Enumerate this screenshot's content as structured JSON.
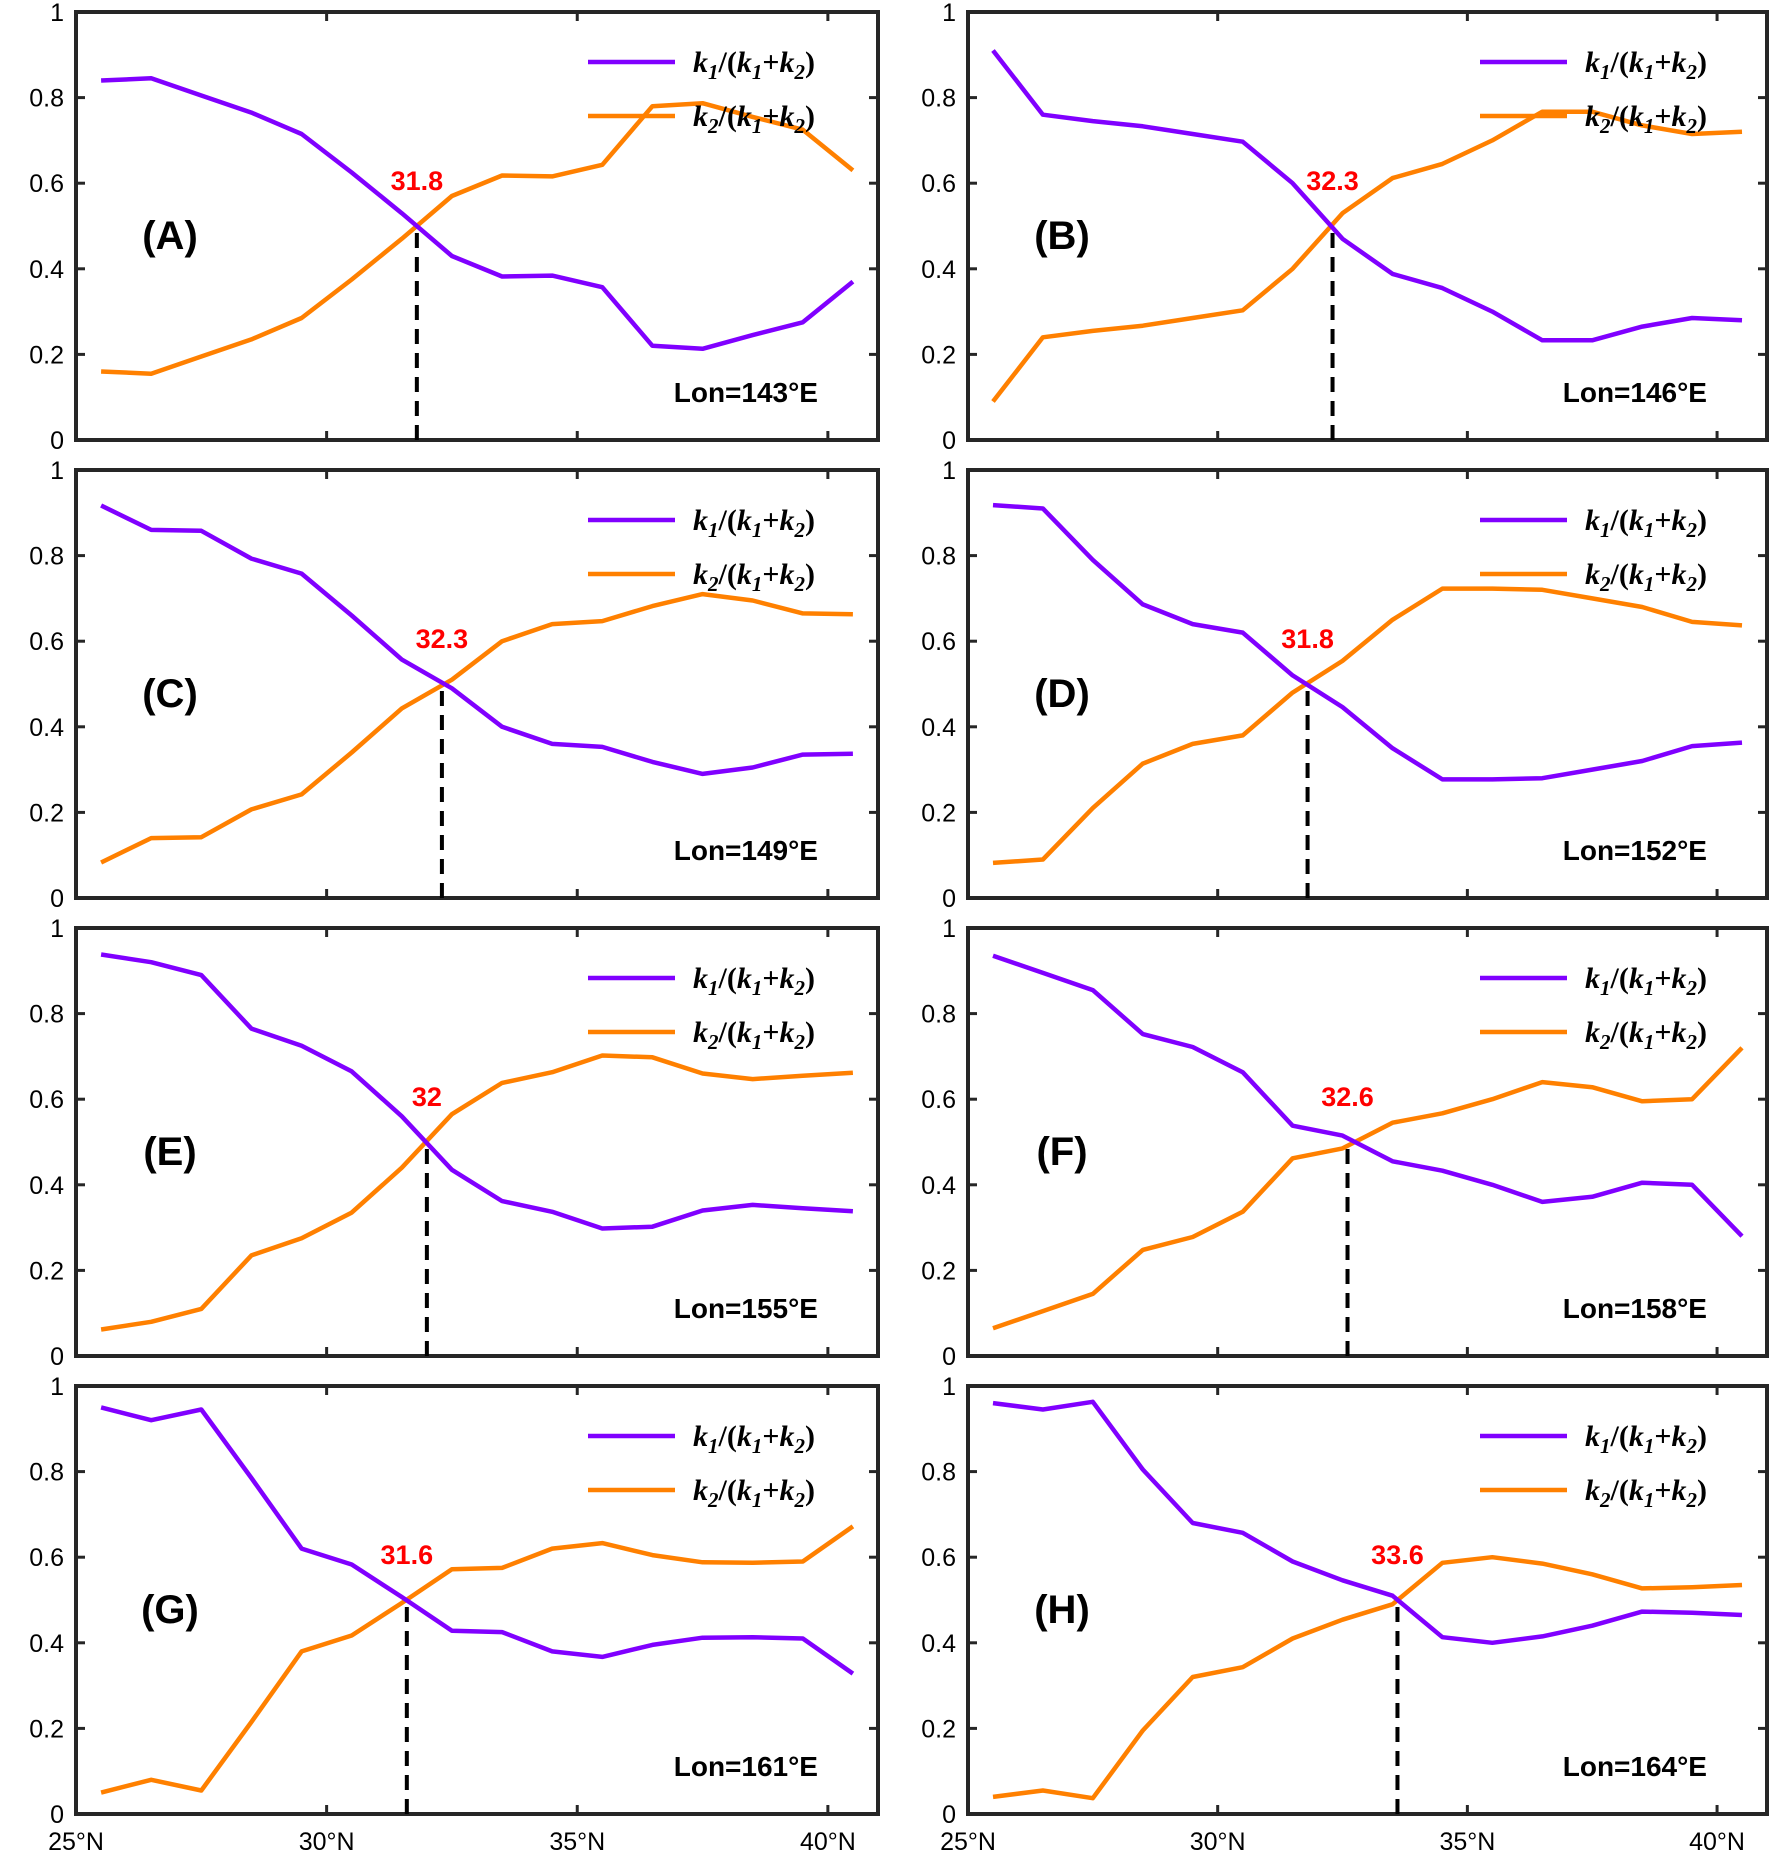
{
  "chart_data": {
    "type": "line",
    "x": [
      25.5,
      26.5,
      27.5,
      28.5,
      29.5,
      30.5,
      31.5,
      32.5,
      33.5,
      34.5,
      35.5,
      36.5,
      37.5,
      38.5,
      39.5,
      40.5
    ],
    "xlim": [
      25,
      41
    ],
    "ylim": [
      0,
      1
    ],
    "xticks": [
      25,
      30,
      35,
      40
    ],
    "xtick_labels": [
      "25°N",
      "30°N",
      "35°N",
      "40°N"
    ],
    "yticks": [
      0,
      0.2,
      0.4,
      0.6,
      0.8,
      1
    ],
    "ytick_labels": [
      "0",
      "0.2",
      "0.4",
      "0.6",
      "0.8",
      "1"
    ],
    "legend": {
      "placement": "top-right",
      "series1": {
        "name": "k1/(k1+k2)",
        "num_var": "k",
        "num_sub": "1",
        "den_open": "/(",
        "den_var1": "k",
        "den_sub1": "1",
        "plus": "+",
        "den_var2": "k",
        "den_sub2": "2",
        "close": ")"
      },
      "series2": {
        "name": "k2/(k1+k2)",
        "num_var": "k",
        "num_sub": "2",
        "den_open": "/(",
        "den_var1": "k",
        "den_sub1": "1",
        "plus": "+",
        "den_var2": "k",
        "den_sub2": "2",
        "close": ")"
      }
    },
    "colors": {
      "k1": "#8000ff",
      "k2": "#ff8000",
      "crossing_label": "#ff0000",
      "crossing_line": "#000000"
    },
    "panels": [
      {
        "label": "(A)",
        "lon_label": "Lon=143°E",
        "crossing": 31.8,
        "crossing_label": "31.8",
        "k1": [
          0.84,
          0.845,
          0.805,
          0.765,
          0.715,
          0.625,
          0.53,
          0.43,
          0.382,
          0.384,
          0.357,
          0.22,
          0.213,
          0.245,
          0.275,
          0.37
        ],
        "k2": [
          0.16,
          0.155,
          0.195,
          0.235,
          0.285,
          0.375,
          0.47,
          0.57,
          0.618,
          0.616,
          0.643,
          0.78,
          0.787,
          0.755,
          0.725,
          0.63
        ]
      },
      {
        "label": "(B)",
        "lon_label": "Lon=146°E",
        "crossing": 32.3,
        "crossing_label": "32.3",
        "k1": [
          0.91,
          0.76,
          0.745,
          0.733,
          0.715,
          0.697,
          0.6,
          0.47,
          0.388,
          0.355,
          0.3,
          0.233,
          0.233,
          0.265,
          0.285,
          0.28
        ],
        "k2": [
          0.09,
          0.24,
          0.255,
          0.267,
          0.285,
          0.303,
          0.4,
          0.53,
          0.612,
          0.645,
          0.7,
          0.767,
          0.767,
          0.735,
          0.715,
          0.72
        ]
      },
      {
        "label": "(C)",
        "lon_label": "Lon=149°E",
        "crossing": 32.3,
        "crossing_label": "32.3",
        "k1": [
          0.917,
          0.86,
          0.858,
          0.793,
          0.758,
          0.66,
          0.557,
          0.49,
          0.4,
          0.36,
          0.353,
          0.318,
          0.29,
          0.305,
          0.335,
          0.337
        ],
        "k2": [
          0.083,
          0.14,
          0.142,
          0.207,
          0.242,
          0.34,
          0.443,
          0.51,
          0.6,
          0.64,
          0.647,
          0.682,
          0.71,
          0.695,
          0.665,
          0.663
        ]
      },
      {
        "label": "(D)",
        "lon_label": "Lon=152°E",
        "crossing": 31.8,
        "crossing_label": "31.8",
        "k1": [
          0.918,
          0.91,
          0.79,
          0.686,
          0.64,
          0.62,
          0.52,
          0.446,
          0.35,
          0.277,
          0.277,
          0.28,
          0.3,
          0.32,
          0.355,
          0.363
        ],
        "k2": [
          0.082,
          0.09,
          0.21,
          0.314,
          0.36,
          0.38,
          0.48,
          0.554,
          0.65,
          0.723,
          0.723,
          0.72,
          0.7,
          0.68,
          0.645,
          0.637
        ]
      },
      {
        "label": "(E)",
        "lon_label": "Lon=155°E",
        "crossing": 32.0,
        "crossing_label": "32",
        "k1": [
          0.938,
          0.92,
          0.89,
          0.765,
          0.725,
          0.665,
          0.56,
          0.435,
          0.362,
          0.337,
          0.298,
          0.302,
          0.34,
          0.353,
          0.345,
          0.338
        ],
        "k2": [
          0.062,
          0.08,
          0.11,
          0.235,
          0.275,
          0.335,
          0.44,
          0.565,
          0.638,
          0.663,
          0.702,
          0.698,
          0.66,
          0.647,
          0.655,
          0.662
        ]
      },
      {
        "label": "(F)",
        "lon_label": "Lon=158°E",
        "crossing": 32.6,
        "crossing_label": "32.6",
        "k1": [
          0.935,
          0.895,
          0.855,
          0.752,
          0.722,
          0.663,
          0.538,
          0.515,
          0.455,
          0.433,
          0.4,
          0.36,
          0.372,
          0.405,
          0.4,
          0.28
        ],
        "k2": [
          0.065,
          0.105,
          0.145,
          0.248,
          0.278,
          0.337,
          0.462,
          0.485,
          0.545,
          0.567,
          0.6,
          0.64,
          0.628,
          0.595,
          0.6,
          0.72
        ]
      },
      {
        "label": "(G)",
        "lon_label": "Lon=161°E",
        "crossing": 31.6,
        "crossing_label": "31.6",
        "k1": [
          0.95,
          0.92,
          0.945,
          0.785,
          0.62,
          0.583,
          0.507,
          0.428,
          0.425,
          0.38,
          0.367,
          0.395,
          0.412,
          0.413,
          0.41,
          0.328
        ],
        "k2": [
          0.05,
          0.08,
          0.055,
          0.215,
          0.38,
          0.417,
          0.493,
          0.572,
          0.575,
          0.62,
          0.633,
          0.605,
          0.588,
          0.587,
          0.59,
          0.672
        ]
      },
      {
        "label": "(H)",
        "lon_label": "Lon=164°E",
        "crossing": 33.6,
        "crossing_label": "33.6",
        "k1": [
          0.96,
          0.945,
          0.963,
          0.805,
          0.68,
          0.657,
          0.59,
          0.546,
          0.51,
          0.413,
          0.4,
          0.415,
          0.44,
          0.473,
          0.47,
          0.465
        ],
        "k2": [
          0.04,
          0.055,
          0.037,
          0.195,
          0.32,
          0.343,
          0.41,
          0.454,
          0.49,
          0.587,
          0.6,
          0.585,
          0.56,
          0.527,
          0.53,
          0.535
        ]
      }
    ]
  }
}
